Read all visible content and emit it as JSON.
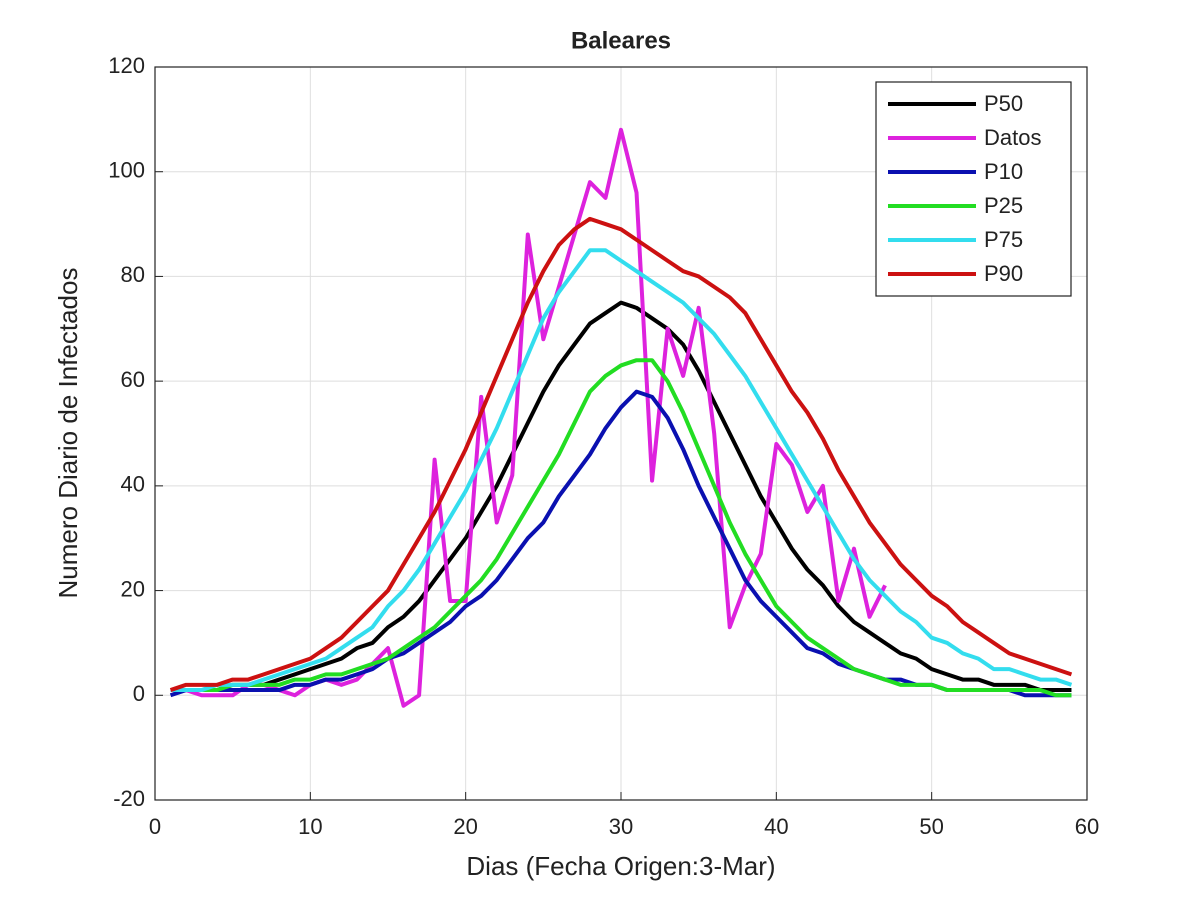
{
  "chart_data": {
    "type": "line",
    "title": "Baleares",
    "x_label": "Dias (Fecha Origen:3-Mar)",
    "y_label": "Numero Diario de Infectados",
    "x": [
      1,
      2,
      3,
      4,
      5,
      6,
      7,
      8,
      9,
      10,
      11,
      12,
      13,
      14,
      15,
      16,
      17,
      18,
      19,
      20,
      21,
      22,
      23,
      24,
      25,
      26,
      27,
      28,
      29,
      30,
      31,
      32,
      33,
      34,
      35,
      36,
      37,
      38,
      39,
      40,
      41,
      42,
      43,
      44,
      45,
      46,
      47,
      48,
      49,
      50,
      51,
      52,
      53,
      54,
      55,
      56,
      57,
      58,
      59
    ],
    "xlim": [
      0,
      60
    ],
    "xticks": [
      0,
      10,
      20,
      30,
      40,
      50,
      60
    ],
    "ylim": [
      -20,
      120
    ],
    "yticks": [
      -20,
      0,
      20,
      40,
      60,
      80,
      100,
      120
    ],
    "grid": true,
    "legend": "northeast",
    "series": [
      {
        "name": "P50",
        "color": "#000000",
        "values": [
          1,
          1,
          1,
          1,
          2,
          2,
          2,
          3,
          4,
          5,
          6,
          7,
          9,
          10,
          13,
          15,
          18,
          22,
          26,
          30,
          35,
          40,
          46,
          52,
          58,
          63,
          67,
          71,
          73,
          75,
          74,
          72,
          70,
          67,
          62,
          56,
          50,
          44,
          38,
          33,
          28,
          24,
          21,
          17,
          14,
          12,
          10,
          8,
          7,
          5,
          4,
          3,
          3,
          2,
          2,
          2,
          1,
          1,
          1
        ]
      },
      {
        "name": "Datos",
        "color": "#dd22dd",
        "values": [
          1,
          1,
          0,
          0,
          0,
          2,
          2,
          1,
          0,
          2,
          3,
          2,
          3,
          6,
          9,
          -2,
          0,
          45,
          18,
          18,
          57,
          33,
          42,
          88,
          68,
          78,
          88,
          98,
          95,
          108,
          96,
          41,
          70,
          61,
          74,
          50,
          13,
          21,
          27,
          48,
          44,
          35,
          40,
          18,
          28,
          15,
          21,
          null,
          null,
          null,
          null,
          null,
          null,
          null,
          null,
          null,
          null,
          null,
          null
        ]
      },
      {
        "name": "P10",
        "color": "#0a10b0",
        "values": [
          0,
          1,
          1,
          1,
          1,
          1,
          1,
          1,
          2,
          2,
          3,
          3,
          4,
          5,
          7,
          8,
          10,
          12,
          14,
          17,
          19,
          22,
          26,
          30,
          33,
          38,
          42,
          46,
          51,
          55,
          58,
          57,
          53,
          47,
          40,
          34,
          28,
          22,
          18,
          15,
          12,
          9,
          8,
          6,
          5,
          4,
          3,
          3,
          2,
          2,
          1,
          1,
          1,
          1,
          1,
          0,
          0,
          0,
          0
        ]
      },
      {
        "name": "P25",
        "color": "#22dd22",
        "values": [
          1,
          1,
          1,
          1,
          2,
          2,
          2,
          2,
          3,
          3,
          4,
          4,
          5,
          6,
          7,
          9,
          11,
          13,
          16,
          19,
          22,
          26,
          31,
          36,
          41,
          46,
          52,
          58,
          61,
          63,
          64,
          64,
          60,
          54,
          47,
          40,
          33,
          27,
          22,
          17,
          14,
          11,
          9,
          7,
          5,
          4,
          3,
          2,
          2,
          2,
          1,
          1,
          1,
          1,
          1,
          1,
          1,
          0,
          0
        ]
      },
      {
        "name": "P75",
        "color": "#33ddee",
        "values": [
          1,
          1,
          1,
          2,
          2,
          2,
          3,
          4,
          5,
          6,
          7,
          9,
          11,
          13,
          17,
          20,
          24,
          29,
          34,
          39,
          45,
          51,
          58,
          65,
          72,
          77,
          81,
          85,
          85,
          83,
          81,
          79,
          77,
          75,
          72,
          69,
          65,
          61,
          56,
          51,
          46,
          41,
          36,
          31,
          26,
          22,
          19,
          16,
          14,
          11,
          10,
          8,
          7,
          5,
          5,
          4,
          3,
          3,
          2
        ]
      },
      {
        "name": "P90",
        "color": "#cc1111",
        "values": [
          1,
          2,
          2,
          2,
          3,
          3,
          4,
          5,
          6,
          7,
          9,
          11,
          14,
          17,
          20,
          25,
          30,
          35,
          41,
          47,
          54,
          61,
          68,
          75,
          81,
          86,
          89,
          91,
          90,
          89,
          87,
          85,
          83,
          81,
          80,
          78,
          76,
          73,
          68,
          63,
          58,
          54,
          49,
          43,
          38,
          33,
          29,
          25,
          22,
          19,
          17,
          14,
          12,
          10,
          8,
          7,
          6,
          5,
          4
        ]
      }
    ]
  }
}
